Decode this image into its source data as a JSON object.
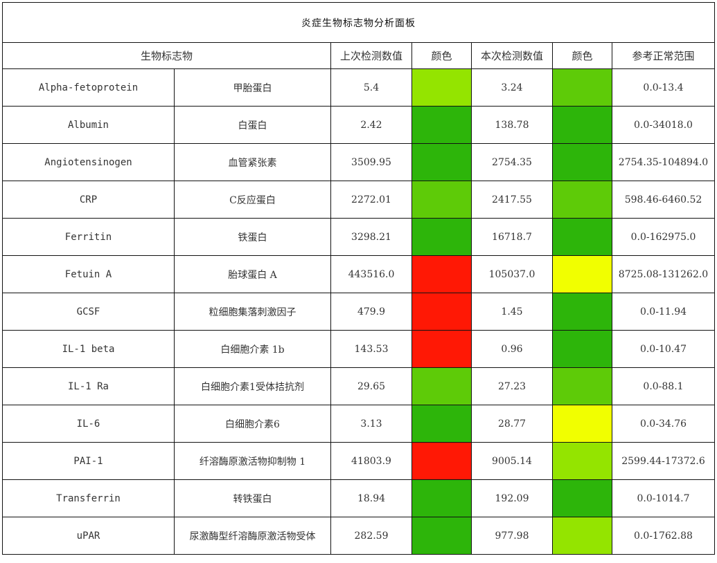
{
  "title": "炎症生物标志物分析面板",
  "headers": {
    "biomarker": "生物标志物",
    "previous_value": "上次检测数值",
    "previous_color": "颜色",
    "current_value": "本次检测数值",
    "current_color": "颜色",
    "reference_range": "参考正常范围"
  },
  "colors": {
    "dark_green": "#2db50a",
    "green": "#5ecb08",
    "light_green": "#94e400",
    "yellow": "#f1ff00",
    "red": "#ff1805"
  },
  "rows": [
    {
      "en": "Alpha-fetoprotein",
      "cn": "甲胎蛋白",
      "prev": "5.4",
      "prev_color": "#94e400",
      "curr": "3.24",
      "curr_color": "#5ecb08",
      "range": "0.0-13.4"
    },
    {
      "en": "Albumin",
      "cn": "白蛋白",
      "prev": "2.42",
      "prev_color": "#2db50a",
      "curr": "138.78",
      "curr_color": "#2db50a",
      "range": "0.0-34018.0"
    },
    {
      "en": "Angiotensinogen",
      "cn": "血管紧张素",
      "prev": "3509.95",
      "prev_color": "#2db50a",
      "curr": "2754.35",
      "curr_color": "#2db50a",
      "range": "2754.35-104894.0"
    },
    {
      "en": "CRP",
      "cn": "C反应蛋白",
      "prev": "2272.01",
      "prev_color": "#5ecb08",
      "curr": "2417.55",
      "curr_color": "#5ecb08",
      "range": "598.46-6460.52"
    },
    {
      "en": "Ferritin",
      "cn": "铁蛋白",
      "prev": "3298.21",
      "prev_color": "#2db50a",
      "curr": "16718.7",
      "curr_color": "#2db50a",
      "range": "0.0-162975.0"
    },
    {
      "en": "Fetuin A",
      "cn": "胎球蛋白 A",
      "prev": "443516.0",
      "prev_color": "#ff1805",
      "curr": "105037.0",
      "curr_color": "#f1ff00",
      "range": "8725.08-131262.0"
    },
    {
      "en": "GCSF",
      "cn": "粒细胞集落刺激因子",
      "prev": "479.9",
      "prev_color": "#ff1805",
      "curr": "1.45",
      "curr_color": "#2db50a",
      "range": "0.0-11.94"
    },
    {
      "en": "IL-1 beta",
      "cn": "白细胞介素 1b",
      "prev": "143.53",
      "prev_color": "#ff1805",
      "curr": "0.96",
      "curr_color": "#2db50a",
      "range": "0.0-10.47"
    },
    {
      "en": "IL-1 Ra",
      "cn": "白细胞介素1受体拮抗剂",
      "prev": "29.65",
      "prev_color": "#5ecb08",
      "curr": "27.23",
      "curr_color": "#5ecb08",
      "range": "0.0-88.1"
    },
    {
      "en": "IL-6",
      "cn": "白细胞介素6",
      "prev": "3.13",
      "prev_color": "#2db50a",
      "curr": "28.77",
      "curr_color": "#f1ff00",
      "range": "0.0-34.76"
    },
    {
      "en": "PAI-1",
      "cn": "纤溶酶原激活物抑制物 1",
      "prev": "41803.9",
      "prev_color": "#ff1805",
      "curr": "9005.14",
      "curr_color": "#94e400",
      "range": "2599.44-17372.6"
    },
    {
      "en": "Transferrin",
      "cn": "转铁蛋白",
      "prev": "18.94",
      "prev_color": "#2db50a",
      "curr": "192.09",
      "curr_color": "#2db50a",
      "range": "0.0-1014.7"
    },
    {
      "en": "uPAR",
      "cn": "尿激酶型纤溶酶原激活物受体",
      "prev": "282.59",
      "prev_color": "#2db50a",
      "curr": "977.98",
      "curr_color": "#94e400",
      "range": "0.0-1762.88"
    }
  ]
}
